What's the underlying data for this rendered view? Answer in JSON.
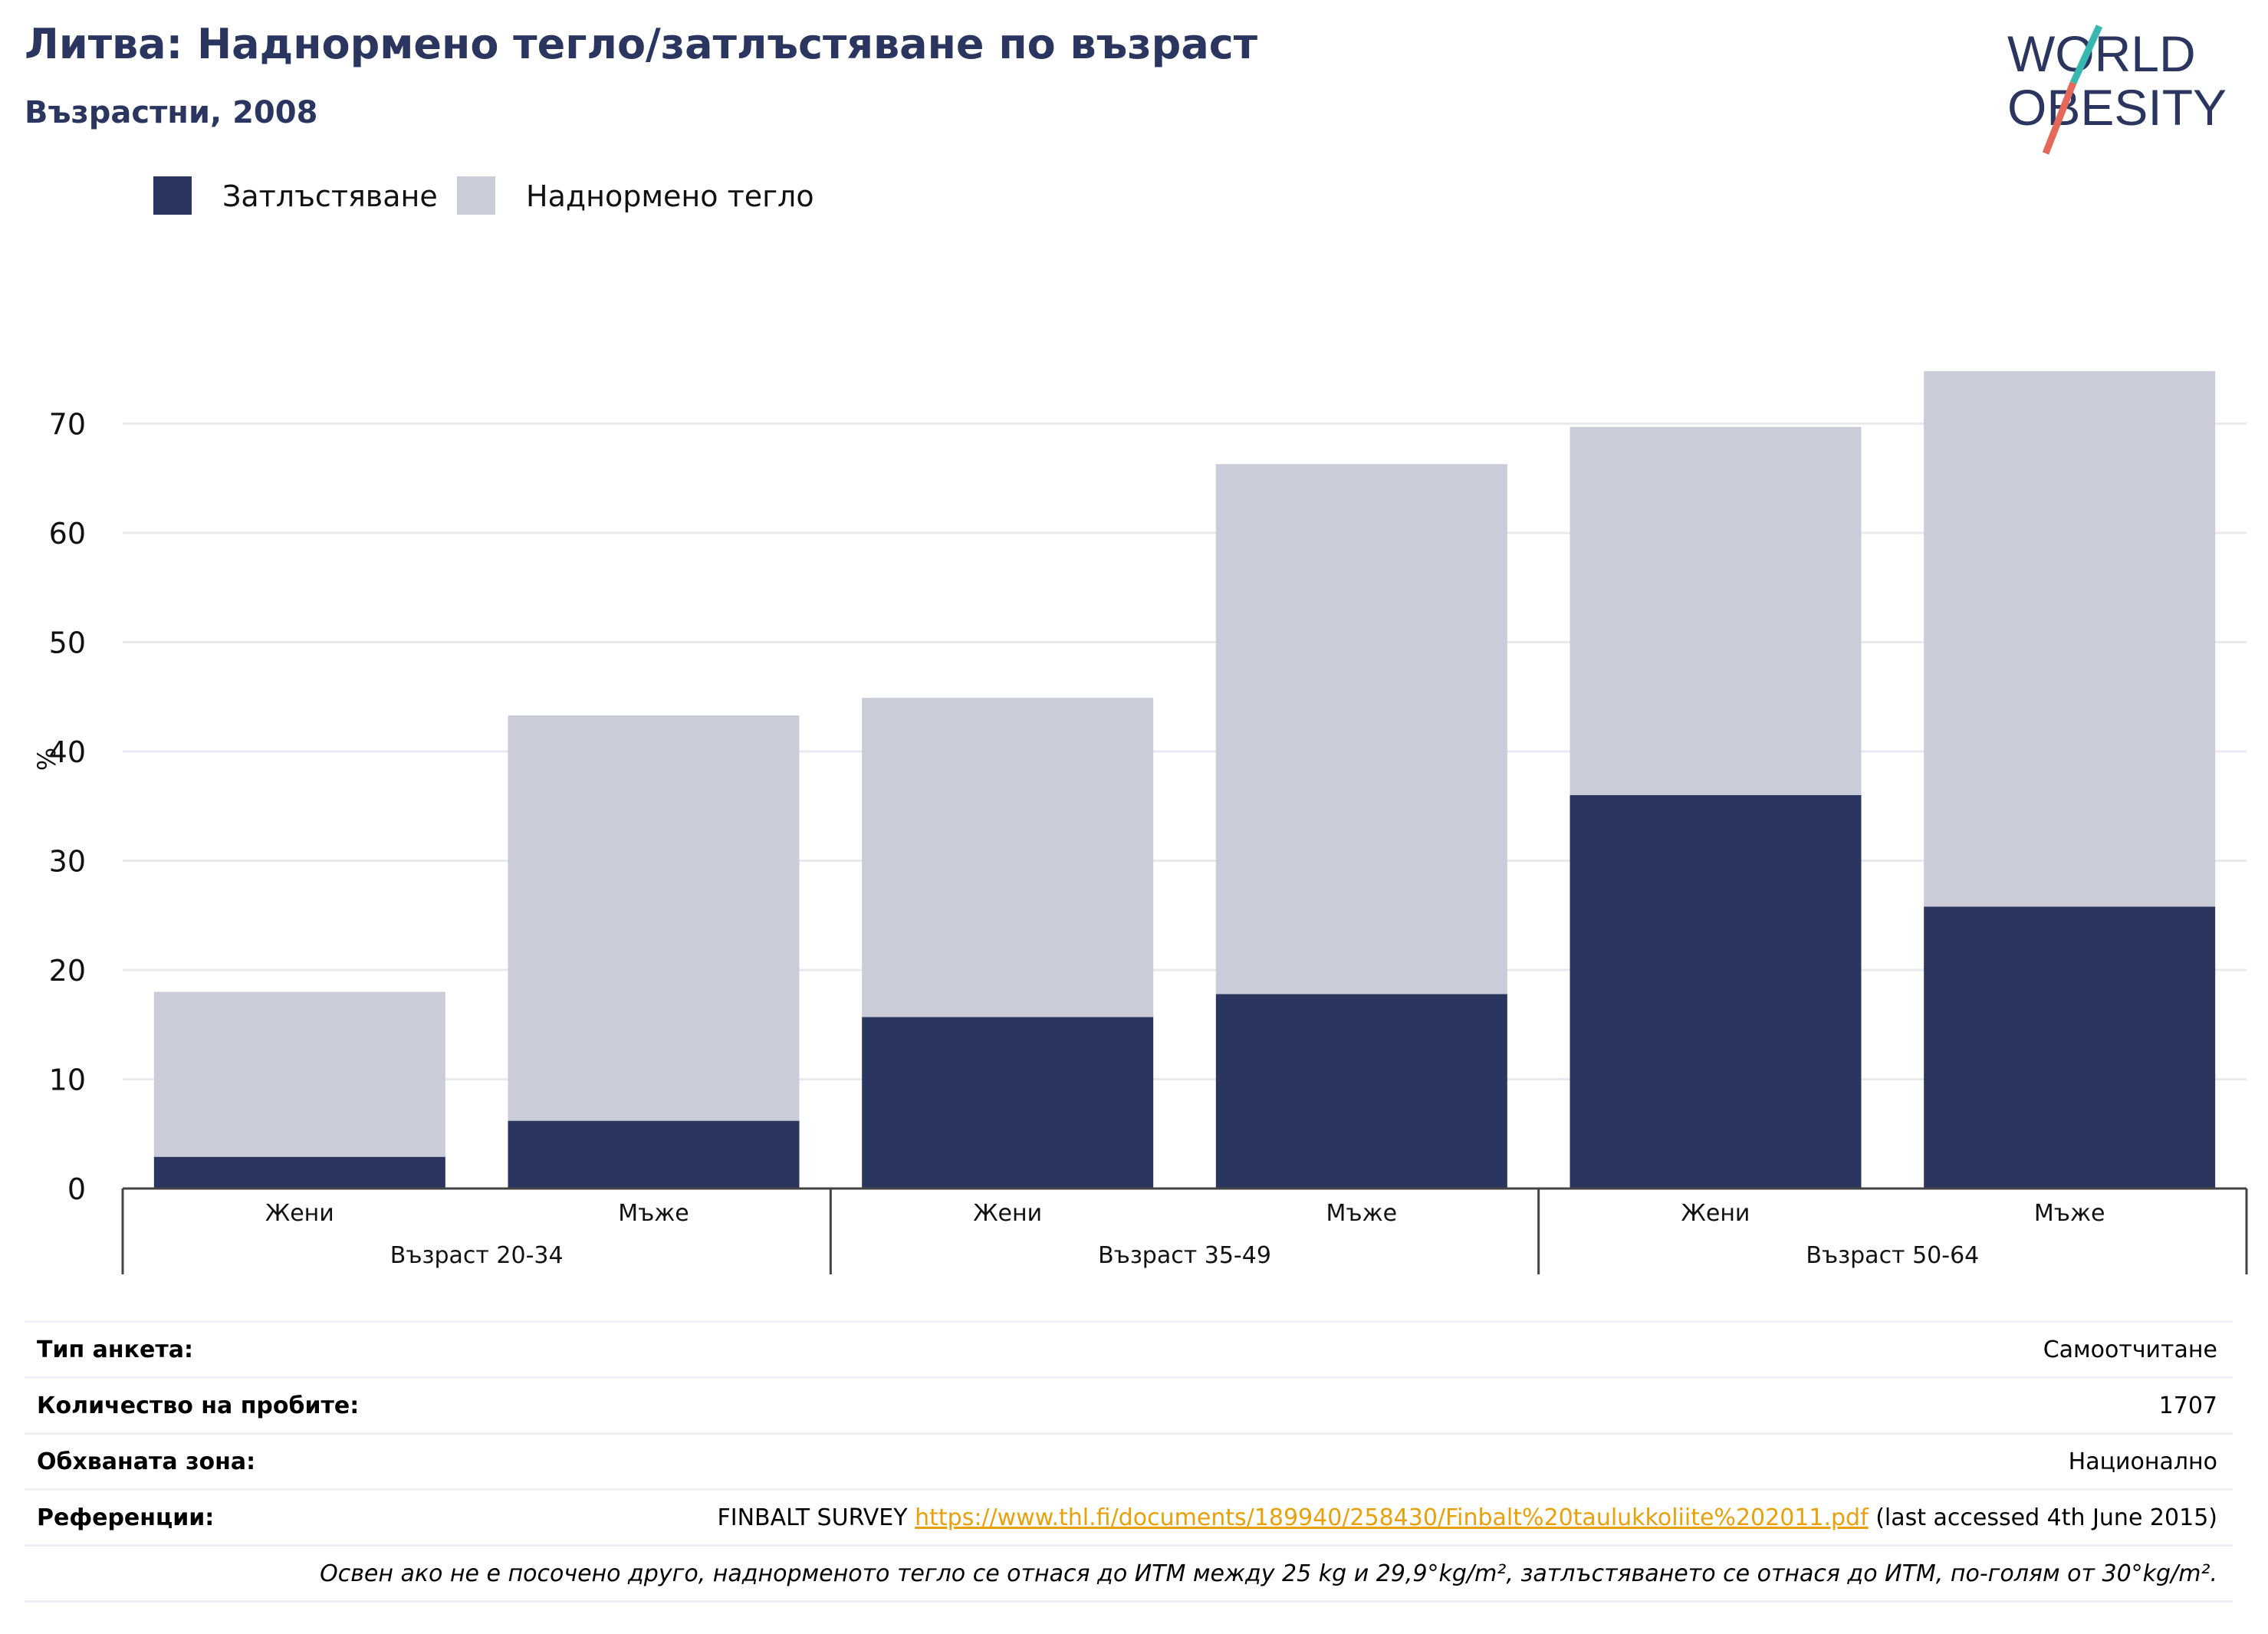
{
  "header": {
    "title": "Литва: Наднормено тегло/затлъстяване по възраст",
    "subtitle": "Възрастни, 2008"
  },
  "logo": {
    "line1": "WORLD",
    "line2": "OBESITY"
  },
  "colors": {
    "obesity": "#2a365f",
    "overweight": "#cacdd9",
    "logo_text": "#2a365f",
    "logo_teal": "#38b6b0",
    "logo_coral": "#e4695a",
    "link": "#e8a10c"
  },
  "chart_data": {
    "type": "bar",
    "stacked": true,
    "ylabel": "%",
    "ylim": [
      0,
      77
    ],
    "yticks": [
      0,
      10,
      20,
      30,
      40,
      50,
      60,
      70
    ],
    "categories": [
      "Жени",
      "Мъже",
      "Жени",
      "Мъже",
      "Жени",
      "Мъже"
    ],
    "groups": [
      {
        "label": "Възраст 20-34",
        "span": 2
      },
      {
        "label": "Възраст 35-49",
        "span": 2
      },
      {
        "label": "Възраст 50-64",
        "span": 2
      }
    ],
    "series": [
      {
        "name": "Затлъстяване",
        "values": [
          2.9,
          6.2,
          15.7,
          17.8,
          36.0,
          25.8
        ]
      },
      {
        "name": "Наднормено тегло",
        "values": [
          15.1,
          37.1,
          29.2,
          48.5,
          33.7,
          49.0
        ]
      }
    ],
    "legend_position": "top-left",
    "grid": true
  },
  "footer": {
    "rows": [
      {
        "label": "Тип анкета:",
        "value": "Самоотчитане"
      },
      {
        "label": "Количество на пробите:",
        "value": "1707"
      },
      {
        "label": "Обхваната зона:",
        "value": "Национално"
      }
    ],
    "reference": {
      "label": "Референции:",
      "prefix": "FINBALT SURVEY ",
      "link": "https://www.thl.fi/documents/189940/258430/Finbalt%20taulukkoliite%202011.pdf",
      "suffix": " (last accessed 4th June 2015)"
    },
    "note": "Освен ако не е посочено друго, наднорменото тегло се отнася до ИТМ между 25 kg и 29,9°kg/m², затлъстяването се отнася до ИТМ, по-голям от 30°kg/m²."
  }
}
